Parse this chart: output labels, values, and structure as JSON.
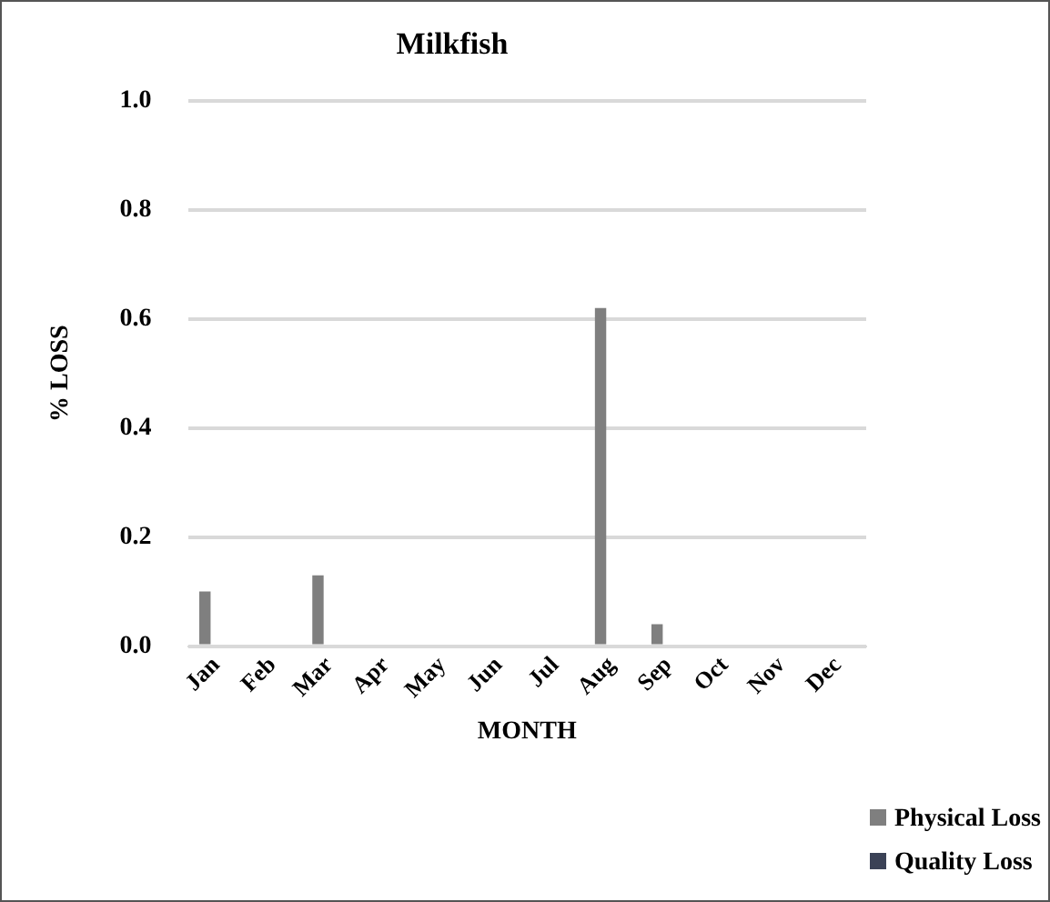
{
  "chart_data": {
    "type": "bar",
    "title": "Milkfish",
    "xlabel": "MONTH",
    "ylabel": "% LOSS",
    "categories": [
      "Jan",
      "Feb",
      "Mar",
      "Apr",
      "May",
      "Jun",
      "Jul",
      "Aug",
      "Sep",
      "Oct",
      "Nov",
      "Dec"
    ],
    "series": [
      {
        "name": "Physical Loss",
        "color": "#7f7f7f",
        "values": [
          0.1,
          0,
          0.13,
          0,
          0,
          0,
          0,
          0.62,
          0.04,
          0,
          0,
          0
        ]
      },
      {
        "name": "Quality Loss",
        "color": "#3b4256",
        "values": [
          0,
          0,
          0,
          0,
          0,
          0,
          0,
          0,
          0,
          0,
          0,
          0
        ]
      }
    ],
    "ylim": [
      0,
      1
    ],
    "yticks": [
      {
        "value": 0,
        "label": "0.0"
      },
      {
        "value": 0.2,
        "label": "0.2"
      },
      {
        "value": 0.4,
        "label": "0.4"
      },
      {
        "value": 0.6,
        "label": "0.6"
      },
      {
        "value": 0.8,
        "label": "0.8"
      },
      {
        "value": 1,
        "label": "1.0"
      }
    ],
    "grid": "y",
    "legend": "bottom right"
  }
}
